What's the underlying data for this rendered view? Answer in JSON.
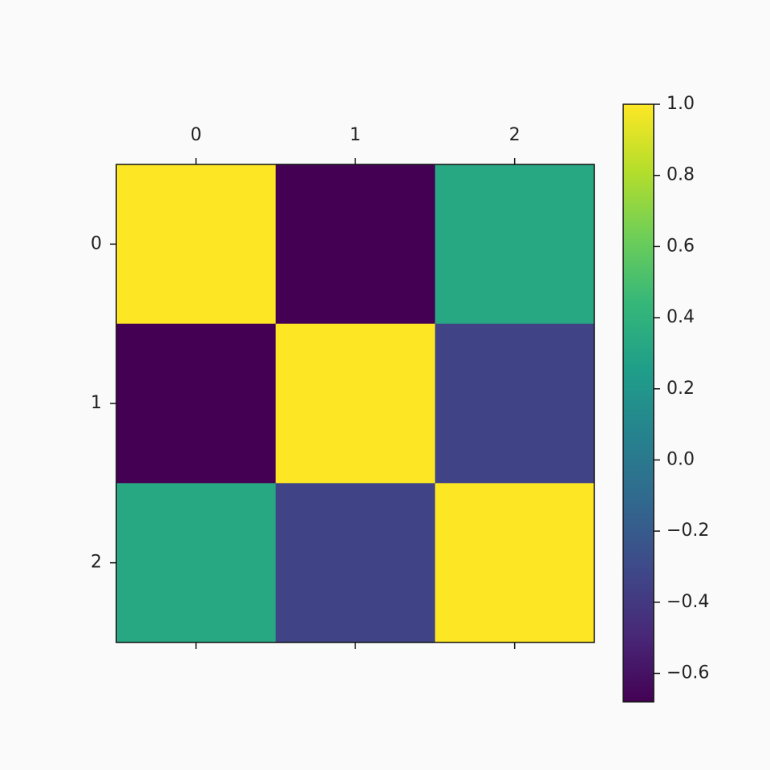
{
  "chart_data": {
    "type": "heatmap",
    "x": [
      "0",
      "1",
      "2"
    ],
    "y": [
      "0",
      "1",
      "2"
    ],
    "z": [
      [
        1.0,
        -0.68,
        0.33
      ],
      [
        -0.68,
        1.0,
        -0.34
      ],
      [
        0.33,
        -0.34,
        1.0
      ]
    ],
    "colormap": "viridis",
    "clim": [
      -0.68,
      1.0
    ],
    "cticks": [
      {
        "value": -0.6,
        "label": "−0.6"
      },
      {
        "value": -0.4,
        "label": "−0.4"
      },
      {
        "value": -0.2,
        "label": "−0.2"
      },
      {
        "value": 0,
        "label": "0.0"
      },
      {
        "value": 0.2,
        "label": "0.2"
      },
      {
        "value": 0.4,
        "label": "0.4"
      },
      {
        "value": 0.6,
        "label": "0.6"
      },
      {
        "value": 0.8,
        "label": "0.8"
      },
      {
        "value": 1.0,
        "label": "1.0"
      }
    ]
  }
}
